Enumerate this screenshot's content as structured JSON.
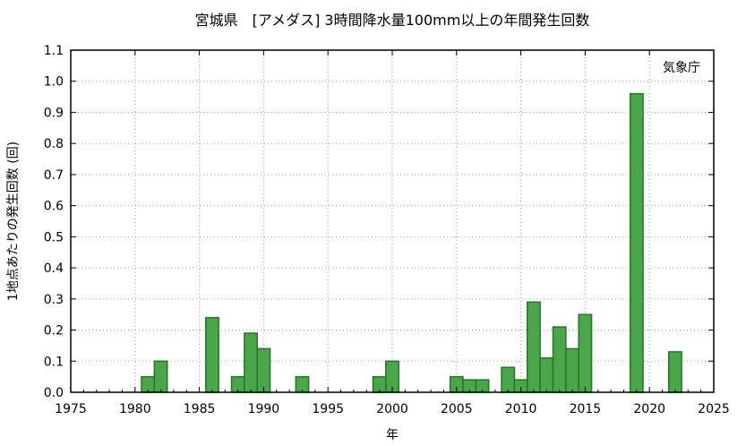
{
  "chart_data": {
    "type": "bar",
    "title": "宮城県　[アメダス] 3時間降水量100mm以上の年間発生回数",
    "xlabel": "年",
    "ylabel": "1地点あたりの発生回数 (回)",
    "credit": "気象庁",
    "xlim": [
      1975,
      2025
    ],
    "ylim": [
      0,
      1.1
    ],
    "x_ticks": [
      1975,
      1980,
      1985,
      1990,
      1995,
      2000,
      2005,
      2010,
      2015,
      2020,
      2025
    ],
    "y_ticks": [
      "0.0",
      "0.1",
      "0.2",
      "0.3",
      "0.4",
      "0.5",
      "0.6",
      "0.7",
      "0.8",
      "0.9",
      "1.0",
      "1.1"
    ],
    "grid": true,
    "bar_color": "#4aa64a",
    "bar_edge_color": "#1f7a1f",
    "x": [
      1981,
      1982,
      1986,
      1988,
      1989,
      1990,
      1993,
      1999,
      2000,
      2005,
      2006,
      2007,
      2009,
      2010,
      2011,
      2012,
      2013,
      2014,
      2015,
      2019,
      2022
    ],
    "values": [
      0.05,
      0.1,
      0.24,
      0.05,
      0.19,
      0.14,
      0.05,
      0.05,
      0.1,
      0.05,
      0.04,
      0.04,
      0.08,
      0.04,
      0.29,
      0.11,
      0.21,
      0.14,
      0.25,
      0.96,
      0.13
    ]
  }
}
